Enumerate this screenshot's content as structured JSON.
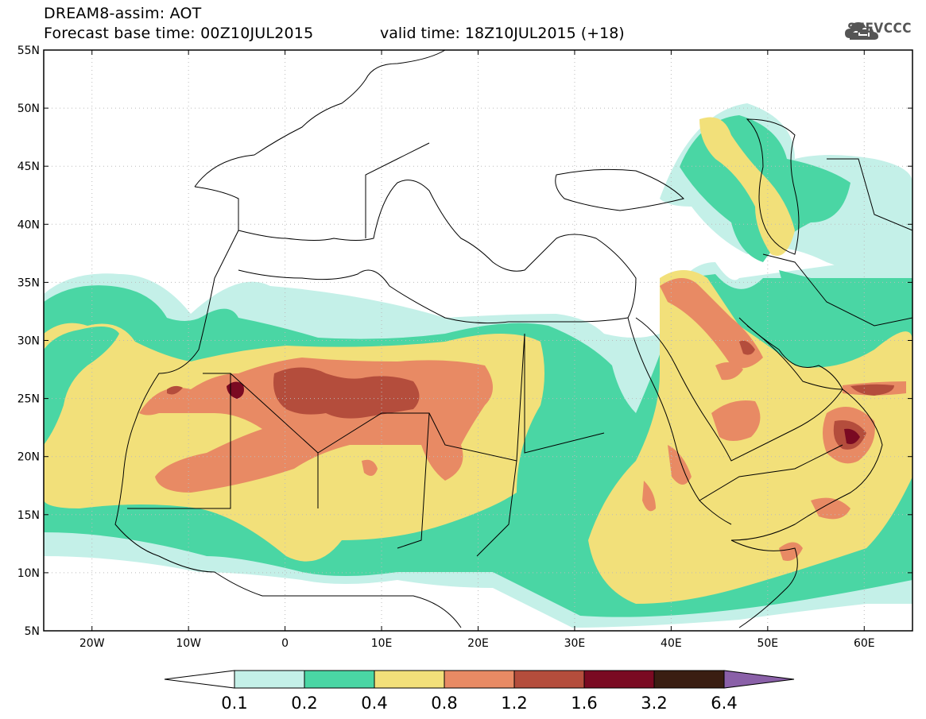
{
  "header": {
    "title": "DREAM8-assim: AOT",
    "base_time": "Forecast base time: 00Z10JUL2015",
    "valid_time": "valid time: 18Z10JUL2015 (+18)"
  },
  "logo": {
    "text": "SEEVCCC",
    "icon": "cloud-icon"
  },
  "map": {
    "lon_range": [
      -25,
      65
    ],
    "lat_range": [
      5,
      55
    ],
    "lat_labels": [
      "55N",
      "50N",
      "45N",
      "40N",
      "35N",
      "30N",
      "25N",
      "20N",
      "15N",
      "10N",
      "5N"
    ],
    "lon_labels": [
      "20W",
      "10W",
      "0",
      "10E",
      "20E",
      "30E",
      "40E",
      "50E",
      "60E"
    ],
    "grid": true
  },
  "colorbar": {
    "labels": [
      "0.1",
      "0.2",
      "0.4",
      "0.8",
      "1.2",
      "1.6",
      "3.2",
      "6.4"
    ],
    "colors": [
      "#c4f0e8",
      "#4ad6a4",
      "#f2e07a",
      "#e88a64",
      "#b44d3c",
      "#7a0a22",
      "#3a1e12",
      "#8a60a8"
    ],
    "extend": "both",
    "under_color": "#ffffff"
  },
  "legend_colors": {
    "c01": "#c4f0e8",
    "c02": "#4ad6a4",
    "c04": "#f2e07a",
    "c08": "#e88a64",
    "c12": "#b44d3c",
    "c16": "#7a0a22"
  }
}
